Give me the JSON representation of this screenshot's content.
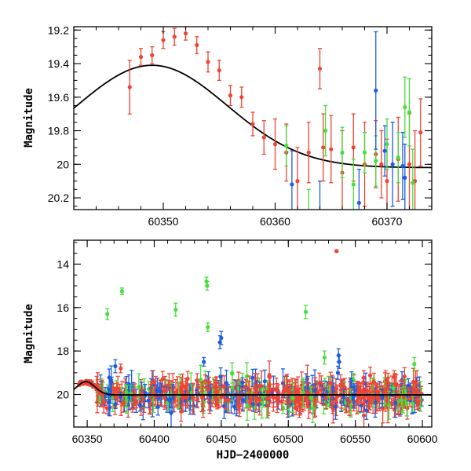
{
  "colors": {
    "red": "#ef4433",
    "green": "#44e03a",
    "blue": "#1d5ee0",
    "curve": "#000000"
  },
  "chart_data": [
    {
      "type": "scatter",
      "xlabel": "",
      "ylabel": "Magnitude",
      "xlim": [
        60342,
        60374
      ],
      "ylim": [
        20.27,
        19.18
      ],
      "y_inverted": true,
      "x_ticks": [
        60350,
        60360,
        60370
      ],
      "x_tick_labels": [
        "60350",
        "60360",
        "60370"
      ],
      "y_ticks": [
        19.2,
        19.4,
        19.6,
        19.8,
        20,
        20.2
      ],
      "y_tick_labels": [
        "19.2",
        "19.4",
        "19.6",
        "19.8",
        "20",
        "20.2"
      ],
      "model_curve": {
        "peak_x": 60349,
        "peak_mag": 19.41,
        "base_mag": 20.02,
        "width": 9.5
      },
      "series": [
        {
          "color": "red",
          "points": [
            [
              60347.0,
              19.54,
              0.16
            ],
            [
              60348.0,
              19.36,
              0.05
            ],
            [
              60349.0,
              19.35,
              0.05
            ],
            [
              60350.0,
              19.26,
              0.05
            ],
            [
              60351.0,
              19.24,
              0.05
            ],
            [
              60352.0,
              19.22,
              0.04
            ],
            [
              60353.0,
              19.29,
              0.05
            ],
            [
              60354.0,
              19.39,
              0.06
            ],
            [
              60355.0,
              19.44,
              0.06
            ],
            [
              60356.0,
              19.59,
              0.06
            ],
            [
              60357.0,
              19.6,
              0.06
            ],
            [
              60358.0,
              19.76,
              0.07
            ],
            [
              60359.0,
              19.84,
              0.1
            ],
            [
              60360.0,
              19.88,
              0.15
            ],
            [
              60361.0,
              19.93,
              0.17
            ],
            [
              60362.0,
              20.1,
              0.2
            ],
            [
              60363.0,
              19.93,
              0.18
            ],
            [
              60364.0,
              19.43,
              0.12
            ],
            [
              60364.3,
              19.9,
              0.2
            ],
            [
              60365.0,
              19.91,
              0.2
            ],
            [
              60366.0,
              20.05,
              0.25
            ],
            [
              60367.0,
              19.9,
              0.2
            ],
            [
              60368.0,
              20.0,
              0.25
            ],
            [
              60369.0,
              19.94,
              0.2
            ],
            [
              60369.5,
              20.0,
              0.2
            ],
            [
              60370.0,
              20.1,
              0.25
            ],
            [
              60371.0,
              19.97,
              0.25
            ],
            [
              60372.0,
              20.0,
              0.3
            ],
            [
              60372.5,
              20.1,
              0.3
            ],
            [
              60373.0,
              19.81,
              0.2
            ]
          ]
        },
        {
          "color": "green",
          "points": [
            [
              60361.0,
              19.89,
              0.12
            ],
            [
              60363.0,
              20.3,
              0.15
            ],
            [
              60364.5,
              19.8,
              0.15
            ],
            [
              60366.0,
              19.93,
              0.15
            ],
            [
              60367.0,
              20.12,
              0.15
            ],
            [
              60368.0,
              19.93,
              0.12
            ],
            [
              60369.0,
              19.98,
              0.15
            ],
            [
              60370.0,
              19.88,
              0.15
            ],
            [
              60371.0,
              19.96,
              0.15
            ],
            [
              60372.0,
              19.69,
              0.2
            ],
            [
              60371.6,
              19.66,
              0.18
            ],
            [
              60372.3,
              20.11,
              0.2
            ]
          ]
        },
        {
          "color": "blue",
          "points": [
            [
              60361.5,
              20.12,
              0.2
            ],
            [
              60364.0,
              20.3,
              0.2
            ],
            [
              60367.5,
              20.23,
              0.2
            ],
            [
              60369.0,
              19.56,
              0.35
            ],
            [
              60369.8,
              19.92,
              0.15
            ],
            [
              60370.5,
              20.0,
              0.25
            ],
            [
              60371.4,
              20.01,
              0.2
            ],
            [
              60371.6,
              20.08,
              0.2
            ]
          ]
        }
      ]
    },
    {
      "type": "scatter",
      "xlabel": "HJD−2400000",
      "ylabel": "Magnitude",
      "xlim": [
        60340,
        60607
      ],
      "ylim": [
        21.5,
        12.9
      ],
      "y_inverted": true,
      "x_ticks": [
        60350,
        60400,
        60450,
        60500,
        60550,
        60600
      ],
      "x_tick_labels": [
        "60350",
        "60400",
        "60450",
        "60500",
        "60550",
        "60600"
      ],
      "y_ticks": [
        14,
        16,
        18,
        20
      ],
      "y_tick_labels": [
        "14",
        "16",
        "18",
        "20"
      ],
      "model_curve": {
        "peak_x": 60349,
        "peak_mag": 19.41,
        "base_mag": 20.02,
        "width": 9.5
      },
      "series": [
        {
          "color": "green",
          "points": [
            [
              60365,
              16.3,
              0.25
            ],
            [
              60376,
              15.25,
              0.15
            ],
            [
              60416,
              16.1,
              0.3
            ],
            [
              60439,
              14.8,
              0.2
            ],
            [
              60439.5,
              15.0,
              0.2
            ],
            [
              60440,
              16.9,
              0.2
            ],
            [
              60513,
              16.2,
              0.3
            ],
            [
              60527,
              18.3,
              0.3
            ],
            [
              60594,
              18.6,
              0.3
            ]
          ]
        },
        {
          "color": "blue",
          "points": [
            [
              60371,
              18.7,
              0.3
            ],
            [
              60437,
              18.5,
              0.2
            ],
            [
              60449,
              17.6,
              0.3
            ],
            [
              60450,
              17.4,
              0.3
            ],
            [
              60537,
              19.0,
              0.3
            ],
            [
              60538,
              18.5,
              0.3
            ],
            [
              60537.5,
              18.2,
              0.3
            ]
          ]
        },
        {
          "color": "red",
          "points": [
            [
              60375,
              18.8,
              0.2
            ],
            [
              60536,
              13.4,
              0.05
            ],
            [
              60579,
              19.2,
              0.3
            ]
          ]
        }
      ],
      "dense_band": {
        "x_range": [
          60357,
          60600
        ],
        "center_mag": 20.02,
        "spread_mag": 0.3,
        "errbar_range": [
          0.2,
          0.7
        ],
        "red_fraction": 0.55,
        "green_fraction": 0.2,
        "blue_fraction": 0.25,
        "count": 650
      },
      "early_points": {
        "x_range": [
          60344,
          60360
        ],
        "color": "red",
        "errbar": 0.06
      }
    }
  ]
}
